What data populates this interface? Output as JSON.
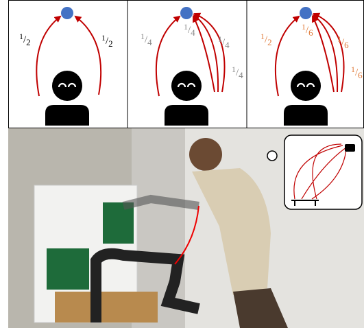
{
  "panels": [
    {
      "color": "#000000",
      "labels": [
        {
          "num": "1",
          "den": "2"
        },
        {
          "num": "1",
          "den": "2"
        }
      ]
    },
    {
      "color": "#888888",
      "labels": [
        {
          "num": "1",
          "den": "4"
        },
        {
          "num": "1",
          "den": "4"
        },
        {
          "num": "1",
          "den": "4"
        },
        {
          "num": "1",
          "den": "4"
        }
      ]
    },
    {
      "color": "#e07b39",
      "labels": [
        {
          "num": "1",
          "den": "2"
        },
        {
          "num": "1",
          "den": "6"
        },
        {
          "num": "1",
          "den": "6"
        },
        {
          "num": "1",
          "den": "6"
        }
      ]
    }
  ]
}
